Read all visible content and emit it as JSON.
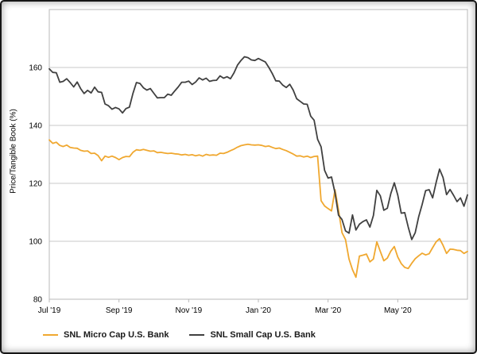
{
  "window": {
    "background": "#ffffff",
    "frame_border_color": "#161616"
  },
  "chart_data": {
    "type": "line",
    "title": "",
    "xlabel": "",
    "ylabel": "Price/Tangible Book (%)",
    "ylim": [
      80,
      180
    ],
    "xlim": [
      0,
      12
    ],
    "y_ticks": [
      80,
      100,
      120,
      140,
      160
    ],
    "x_ticks": [
      {
        "t": 0,
        "label": "Jul '19"
      },
      {
        "t": 2,
        "label": "Sep '19"
      },
      {
        "t": 4,
        "label": "Nov '19"
      },
      {
        "t": 6,
        "label": "Jan '20"
      },
      {
        "t": 8,
        "label": "Mar '20"
      },
      {
        "t": 10,
        "label": "May '20"
      }
    ],
    "x_unit": "months since Jul 2019",
    "x_start": 0,
    "x_step": 0.1,
    "grid": "horizontal",
    "grid_color": "#c9c9c9",
    "axis_color": "#b9b9b9",
    "text_color": "#000000",
    "legend_position": "bottom-left",
    "series": [
      {
        "id": "snl-micro-cap-us-bank",
        "name": "SNL Micro Cap U.S. Bank",
        "color": "#F0A830",
        "values": [
          135.0,
          133.8,
          134.2,
          133.1,
          132.7,
          133.2,
          132.4,
          132.2,
          132.1,
          131.4,
          131.1,
          131.2,
          130.3,
          130.4,
          129.6,
          127.8,
          129.4,
          129.0,
          129.4,
          128.9,
          128.2,
          128.9,
          129.3,
          129.2,
          130.7,
          131.6,
          131.4,
          131.7,
          131.4,
          131.1,
          131.2,
          130.6,
          130.7,
          130.5,
          130.3,
          130.4,
          130.2,
          130.1,
          129.8,
          130.0,
          129.7,
          129.9,
          129.5,
          129.8,
          129.4,
          130.0,
          129.7,
          129.8,
          129.7,
          130.4,
          130.3,
          130.7,
          131.3,
          131.8,
          132.5,
          133.0,
          133.3,
          133.5,
          133.3,
          133.2,
          133.3,
          133.1,
          132.7,
          132.9,
          132.4,
          132.0,
          132.2,
          131.7,
          131.3,
          130.7,
          130.1,
          129.4,
          129.5,
          129.1,
          129.4,
          128.9,
          129.3,
          129.4,
          114.0,
          112.2,
          111.3,
          110.5,
          117.8,
          110.8,
          103.0,
          100.6,
          93.9,
          90.2,
          87.6,
          94.9,
          95.2,
          95.6,
          92.9,
          93.9,
          99.8,
          96.5,
          93.3,
          94.2,
          96.6,
          98.2,
          94.6,
          92.3,
          91.0,
          90.6,
          92.4,
          94.0,
          95.0,
          95.9,
          95.3,
          95.7,
          97.8,
          99.8,
          100.9,
          98.6,
          95.8,
          97.3,
          97.2,
          96.9,
          96.8,
          95.8,
          96.5
        ]
      },
      {
        "id": "snl-small-cap-us-bank",
        "name": "SNL Small Cap U.S. Bank",
        "color": "#404040",
        "values": [
          159.5,
          158.3,
          158.2,
          154.9,
          155.2,
          156.1,
          154.8,
          153.3,
          155.0,
          152.7,
          151.0,
          152.1,
          151.2,
          153.2,
          151.6,
          151.4,
          147.4,
          146.8,
          145.6,
          146.2,
          145.7,
          144.3,
          145.8,
          146.3,
          151.0,
          154.8,
          154.5,
          153.0,
          152.2,
          152.7,
          151.1,
          149.5,
          149.6,
          149.6,
          150.8,
          150.4,
          151.9,
          153.3,
          154.9,
          154.9,
          155.3,
          154.1,
          155.0,
          156.4,
          155.7,
          156.3,
          155.2,
          155.5,
          155.6,
          157.1,
          156.3,
          156.8,
          156.1,
          158.1,
          160.8,
          162.4,
          163.7,
          163.4,
          162.6,
          162.4,
          163.1,
          162.5,
          161.9,
          160.0,
          157.9,
          155.4,
          155.3,
          153.9,
          153.1,
          154.2,
          152.2,
          149.2,
          148.3,
          147.4,
          147.3,
          143.2,
          141.8,
          135.2,
          132.6,
          124.5,
          121.8,
          122.2,
          116.7,
          109.0,
          107.5,
          103.6,
          102.8,
          109.1,
          103.9,
          105.9,
          106.8,
          107.4,
          104.9,
          108.9,
          117.6,
          115.7,
          110.7,
          111.4,
          116.5,
          120.2,
          116.0,
          109.7,
          109.9,
          104.9,
          100.6,
          103.0,
          108.4,
          112.7,
          117.5,
          117.8,
          115.0,
          120.3,
          124.9,
          122.0,
          116.1,
          117.9,
          115.9,
          113.7,
          115.0,
          112.1,
          116.0
        ]
      }
    ]
  },
  "legend": {
    "items": [
      {
        "label": "SNL Micro Cap U.S. Bank"
      },
      {
        "label": "SNL Small Cap U.S. Bank"
      }
    ]
  }
}
